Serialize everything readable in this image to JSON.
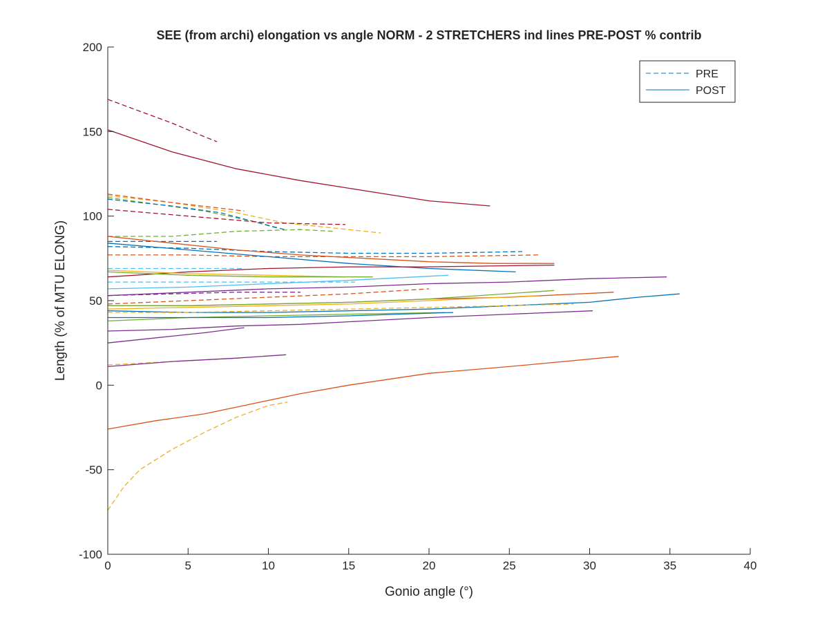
{
  "chart_data": {
    "type": "line",
    "title": "SEE (from archi) elongation vs angle NORM - 2 STRETCHERS ind lines PRE-POST % contrib",
    "xlabel": "Gonio angle (°)",
    "ylabel": "Length (% of MTU ELONG)",
    "xlim": [
      0,
      40
    ],
    "ylim": [
      -100,
      200
    ],
    "xticks": [
      "0",
      "5",
      "10",
      "15",
      "20",
      "25",
      "30",
      "35",
      "40"
    ],
    "yticks": [
      "-100",
      "-50",
      "0",
      "50",
      "100",
      "150",
      "200"
    ],
    "grid": false,
    "legend": {
      "placement": "top-right",
      "entries": [
        {
          "label": "PRE",
          "style": "dashed",
          "color": "#0072BD"
        },
        {
          "label": "POST",
          "style": "solid",
          "color": "#0072BD"
        }
      ]
    },
    "series": [
      {
        "style": "dashed",
        "color": "#A2142F",
        "x": [
          0,
          2,
          4,
          6,
          6.8
        ],
        "y": [
          169,
          162,
          155,
          147,
          144
        ]
      },
      {
        "style": "solid",
        "color": "#A2142F",
        "x": [
          0,
          4,
          8,
          12,
          16,
          20,
          23.8
        ],
        "y": [
          151,
          138,
          128,
          121,
          115,
          109,
          106
        ]
      },
      {
        "style": "dashed",
        "color": "#EDB120",
        "x": [
          0,
          4,
          8,
          11,
          14,
          17
        ],
        "y": [
          112,
          108,
          102,
          96,
          93,
          90
        ]
      },
      {
        "style": "dashed",
        "color": "#77AC30",
        "x": [
          0,
          3,
          6,
          9,
          10.5
        ],
        "y": [
          111,
          107,
          103,
          97,
          93
        ]
      },
      {
        "style": "dashed",
        "color": "#0072BD",
        "x": [
          0,
          4,
          7,
          9,
          11
        ],
        "y": [
          110,
          106,
          102,
          97,
          92
        ]
      },
      {
        "style": "dashed",
        "color": "#D95319",
        "x": [
          0,
          4,
          8.5
        ],
        "y": [
          113,
          108,
          103
        ]
      },
      {
        "style": "dashed",
        "color": "#A2142F",
        "x": [
          0,
          5,
          10,
          14.8
        ],
        "y": [
          104,
          100,
          96,
          95
        ]
      },
      {
        "style": "dashed",
        "color": "#77AC30",
        "x": [
          0,
          4,
          8,
          12,
          14
        ],
        "y": [
          88,
          88,
          91,
          92,
          91
        ]
      },
      {
        "style": "dashed",
        "color": "#0072BD",
        "x": [
          0,
          3,
          6.8
        ],
        "y": [
          85,
          85,
          85
        ]
      },
      {
        "style": "dashed",
        "color": "#0072BD",
        "x": [
          0,
          5,
          10,
          15,
          20,
          25.8
        ],
        "y": [
          82,
          81,
          79,
          78,
          78,
          79
        ]
      },
      {
        "style": "dashed",
        "color": "#D95319",
        "x": [
          0,
          5,
          10,
          15,
          20,
          26.8
        ],
        "y": [
          77,
          77,
          76,
          76,
          76,
          77
        ]
      },
      {
        "style": "solid",
        "color": "#D95319",
        "x": [
          0,
          4,
          8,
          12,
          16,
          20,
          24,
          27.8
        ],
        "y": [
          88,
          84,
          80,
          77,
          75,
          73,
          72,
          72
        ]
      },
      {
        "style": "solid",
        "color": "#0072BD",
        "x": [
          0,
          5,
          10,
          15,
          20,
          25.4
        ],
        "y": [
          84,
          80,
          76,
          72,
          69,
          67
        ]
      },
      {
        "style": "solid",
        "color": "#A2142F",
        "x": [
          0,
          5,
          10,
          15,
          20,
          27.8
        ],
        "y": [
          64,
          67,
          69,
          70,
          70,
          71
        ]
      },
      {
        "style": "dashed",
        "color": "#4DBEEE",
        "x": [
          0,
          4,
          8.5
        ],
        "y": [
          69,
          69,
          69
        ]
      },
      {
        "style": "solid",
        "color": "#EDB120",
        "x": [
          0,
          5,
          10,
          14.8
        ],
        "y": [
          68,
          66,
          65,
          64
        ]
      },
      {
        "style": "solid",
        "color": "#77AC30",
        "x": [
          0,
          5,
          10,
          16.5
        ],
        "y": [
          67,
          65,
          64,
          64
        ]
      },
      {
        "style": "solid",
        "color": "#4DBEEE",
        "x": [
          0,
          5,
          10,
          15,
          21.2
        ],
        "y": [
          57,
          58,
          60,
          62,
          65
        ]
      },
      {
        "style": "dashed",
        "color": "#4DBEEE",
        "x": [
          0,
          5,
          10,
          15.4
        ],
        "y": [
          61,
          61,
          61,
          61
        ]
      },
      {
        "style": "solid",
        "color": "#7E2F8E",
        "x": [
          0,
          5,
          10,
          15,
          20,
          25,
          30,
          34.8
        ],
        "y": [
          53,
          55,
          57,
          58,
          60,
          61,
          63,
          64
        ]
      },
      {
        "style": "dashed",
        "color": "#7E2F8E",
        "x": [
          0,
          4,
          8,
          12
        ],
        "y": [
          53,
          54,
          55,
          55
        ]
      },
      {
        "style": "dashed",
        "color": "#D95319",
        "x": [
          0,
          5,
          10,
          15,
          20
        ],
        "y": [
          48,
          50,
          52,
          54,
          57
        ]
      },
      {
        "style": "solid",
        "color": "#D95319",
        "x": [
          0,
          5,
          10,
          15,
          20,
          25,
          31.5
        ],
        "y": [
          47,
          47,
          48,
          49,
          51,
          52,
          55
        ]
      },
      {
        "style": "solid",
        "color": "#77AC30",
        "x": [
          0,
          5,
          10,
          15,
          20,
          27.8
        ],
        "y": [
          47,
          47,
          48,
          49,
          51,
          56
        ]
      },
      {
        "style": "solid",
        "color": "#EDB120",
        "x": [
          0,
          5,
          10,
          15,
          20,
          26.8
        ],
        "y": [
          45,
          46,
          47,
          48,
          50,
          53
        ]
      },
      {
        "style": "solid",
        "color": "#0072BD",
        "x": [
          0,
          5,
          10,
          15,
          20,
          25,
          30,
          33,
          35.6
        ],
        "y": [
          44,
          43,
          43,
          44,
          45,
          47,
          49,
          52,
          54
        ]
      },
      {
        "style": "dashed",
        "color": "#EDB120",
        "x": [
          0,
          5,
          10,
          15,
          20,
          25,
          29
        ],
        "y": [
          43,
          43,
          44,
          45,
          46,
          47,
          48
        ]
      },
      {
        "style": "solid",
        "color": "#77AC30",
        "x": [
          0,
          5,
          10,
          15,
          21
        ],
        "y": [
          38,
          40,
          41,
          42,
          43
        ]
      },
      {
        "style": "solid",
        "color": "#0072BD",
        "x": [
          0,
          5,
          10,
          15,
          21.5
        ],
        "y": [
          40,
          40,
          40,
          41,
          43
        ]
      },
      {
        "style": "solid",
        "color": "#7E2F8E",
        "x": [
          0,
          4,
          8,
          12,
          16,
          20,
          25,
          30.2
        ],
        "y": [
          32,
          33,
          35,
          36,
          38,
          40,
          42,
          44
        ]
      },
      {
        "style": "solid",
        "color": "#7E2F8E",
        "x": [
          0,
          3,
          6,
          8.5
        ],
        "y": [
          25,
          28,
          31,
          34
        ]
      },
      {
        "style": "dashed",
        "color": "#EDB120",
        "x": [
          0,
          4,
          8.2
        ],
        "y": [
          12,
          14,
          16
        ]
      },
      {
        "style": "solid",
        "color": "#7E2F8E",
        "x": [
          0,
          4,
          8,
          11.1
        ],
        "y": [
          11,
          14,
          16,
          18
        ]
      },
      {
        "style": "solid",
        "color": "#D95319",
        "x": [
          0,
          3,
          6,
          9,
          12,
          15,
          20,
          25,
          31.8
        ],
        "y": [
          -26,
          -21,
          -17,
          -11,
          -5,
          0,
          7,
          11,
          17
        ]
      },
      {
        "style": "dashed",
        "color": "#EDB120",
        "x": [
          0,
          1,
          2,
          4,
          6,
          8,
          10,
          11.2
        ],
        "y": [
          -74,
          -60,
          -50,
          -38,
          -28,
          -19,
          -12,
          -10
        ]
      }
    ]
  }
}
